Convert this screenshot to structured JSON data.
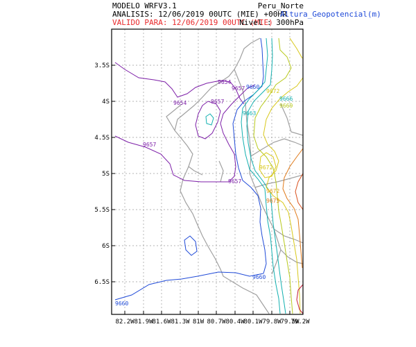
{
  "header": {
    "model": "MODELO WRFV3.1",
    "analysis": "ANALISIS: 12/06/2019 00UTC (MIE) +00HR",
    "valid": "VALIDO PARA: 12/06/2019 00UTC (MIE)",
    "region": "Peru_Norte",
    "variable": "Altura_Geopotencial(m)",
    "level": "Nivel : 300hPa"
  },
  "axes": {
    "lat_labels": [
      "3.5S",
      "4S",
      "4.5S",
      "5S",
      "5.5S",
      "6S",
      "6.5S"
    ],
    "lon_labels": [
      "82.2W",
      "81.9W",
      "81.6W",
      "81.3W",
      "81W",
      "80.7W",
      "80.4W",
      "80.1W",
      "79.8W",
      "79.5W",
      "79.2W"
    ]
  },
  "contour_labels": [
    {
      "text": "9654",
      "color": "#7d1fa8"
    },
    {
      "text": "9654",
      "color": "#7d1fa8"
    },
    {
      "text": "9657",
      "color": "#7d1fa8"
    },
    {
      "text": "9657",
      "color": "#7d1fa8"
    },
    {
      "text": "9657",
      "color": "#7d1fa8"
    },
    {
      "text": "9657",
      "color": "#7d1fa8"
    },
    {
      "text": "9660",
      "color": "#1f4ad8"
    },
    {
      "text": "9660",
      "color": "#1f4ad8"
    },
    {
      "text": "9660",
      "color": "#1f4ad8"
    },
    {
      "text": "9663",
      "color": "#12b0b0"
    },
    {
      "text": "9666",
      "color": "#12b0b0"
    },
    {
      "text": "9669",
      "color": "#b8c91c"
    },
    {
      "text": "9672",
      "color": "#d8c81a"
    },
    {
      "text": "9672",
      "color": "#d8c81a"
    },
    {
      "text": "9672",
      "color": "#e4a41a"
    },
    {
      "text": "9675",
      "color": "#e07a1a"
    }
  ],
  "colors": {
    "frame": "#000000",
    "grid": "#9a9a9a",
    "coastline": "#a0a0a0",
    "c9654_9657": "#7d1fa8",
    "c9660": "#1f4ad8",
    "c9663_9666": "#12b0b0",
    "c9669": "#b8c91c",
    "c9672": "#d8c81a",
    "c9675": "#e07a1a",
    "c9678": "#d9501e",
    "c9681": "#c41e3a"
  }
}
